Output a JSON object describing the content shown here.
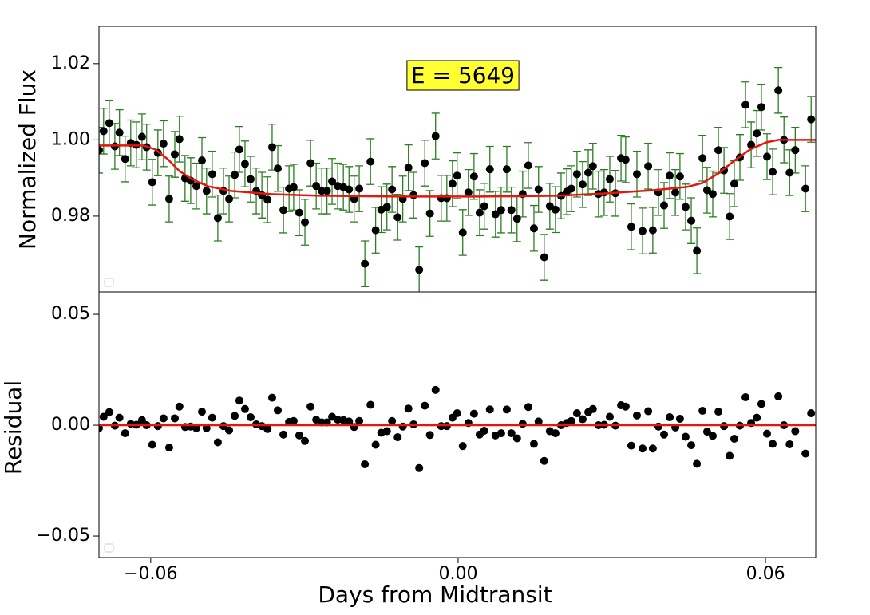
{
  "chart_data": [
    {
      "type": "scatter",
      "ylabel": "Normalized Flux",
      "annotation": "E = 5649",
      "color": "#000000",
      "errorbar_color": "#2b7d22",
      "annotation_color": "#ffff33",
      "xlim": [
        -0.0701,
        0.0698
      ],
      "ylim": [
        0.9601,
        1.0298
      ],
      "yticks": [
        {
          "value": 0.98,
          "label": "0.98"
        },
        {
          "value": 1.0,
          "label": "1.00"
        },
        {
          "value": 1.02,
          "label": "1.02"
        }
      ],
      "yerr": 0.006,
      "x": [
        -0.0701,
        -0.0692,
        -0.0681,
        -0.067,
        -0.0661,
        -0.065,
        -0.0639,
        -0.0628,
        -0.0617,
        -0.0608,
        -0.0597,
        -0.0586,
        -0.0575,
        -0.0564,
        -0.0553,
        -0.0544,
        -0.0533,
        -0.0522,
        -0.0511,
        -0.05,
        -0.0491,
        -0.048,
        -0.0469,
        -0.0458,
        -0.0447,
        -0.0436,
        -0.0427,
        -0.0416,
        -0.0405,
        -0.0394,
        -0.0383,
        -0.0372,
        -0.0363,
        -0.0352,
        -0.0341,
        -0.033,
        -0.0321,
        -0.031,
        -0.0299,
        -0.0288,
        -0.0277,
        -0.0266,
        -0.0256,
        -0.0246,
        -0.0235,
        -0.0224,
        -0.0213,
        -0.0203,
        -0.0193,
        -0.0182,
        -0.0171,
        -0.0161,
        -0.015,
        -0.0139,
        -0.0129,
        -0.0118,
        -0.0108,
        -0.0097,
        -0.0087,
        -0.0076,
        -0.0065,
        -0.0055,
        -0.0044,
        -0.0033,
        -0.0022,
        -0.0011,
        -0.0002,
        0.0009,
        0.002,
        0.0031,
        0.0042,
        0.0051,
        0.0062,
        0.0073,
        0.0084,
        0.0095,
        0.0104,
        0.0115,
        0.0126,
        0.0137,
        0.0148,
        0.0157,
        0.0168,
        0.0179,
        0.019,
        0.0201,
        0.0212,
        0.0221,
        0.0232,
        0.0243,
        0.0254,
        0.0263,
        0.0274,
        0.0285,
        0.0296,
        0.0307,
        0.0318,
        0.0327,
        0.0338,
        0.0349,
        0.036,
        0.0371,
        0.038,
        0.0391,
        0.0402,
        0.0413,
        0.0424,
        0.0433,
        0.0444,
        0.0455,
        0.0466,
        0.0477,
        0.0486,
        0.0497,
        0.0508,
        0.0519,
        0.053,
        0.0539,
        0.055,
        0.0561,
        0.0572,
        0.0583,
        0.0592,
        0.0603,
        0.0614,
        0.0625,
        0.0636,
        0.0647,
        0.0658,
        0.0678,
        0.0689
      ],
      "values": [
        0.9973,
        1.0023,
        1.0044,
        0.9983,
        1.0019,
        0.995,
        0.9992,
        0.9987,
        1.0008,
        0.9981,
        0.9889,
        0.9966,
        0.999,
        0.9845,
        0.9962,
        1.0002,
        0.9899,
        0.9893,
        0.9879,
        0.9946,
        0.9866,
        0.991,
        0.9795,
        0.9866,
        0.9845,
        0.9908,
        0.9975,
        0.9937,
        0.9897,
        0.9866,
        0.9855,
        0.9843,
        0.9981,
        0.9925,
        0.9816,
        0.9872,
        0.9876,
        0.9809,
        0.9784,
        0.9939,
        0.9879,
        0.9866,
        0.9866,
        0.9891,
        0.9879,
        0.9876,
        0.987,
        0.9845,
        0.9872,
        0.9675,
        0.9943,
        0.9763,
        0.9817,
        0.9824,
        0.987,
        0.9797,
        0.9845,
        0.9927,
        0.9855,
        0.9659,
        0.9939,
        0.9807,
        1.001,
        0.9847,
        0.9847,
        0.9885,
        0.9906,
        0.9757,
        0.9862,
        0.9904,
        0.9809,
        0.9826,
        0.9923,
        0.9805,
        0.9816,
        0.9923,
        0.9816,
        0.9793,
        0.9858,
        0.9933,
        0.9768,
        0.987,
        0.9692,
        0.9826,
        0.9817,
        0.9853,
        0.9864,
        0.9872,
        0.991,
        0.9883,
        0.9914,
        0.9931,
        0.9858,
        0.9862,
        0.9897,
        0.986,
        0.9952,
        0.9948,
        0.9772,
        0.991,
        0.9761,
        0.9931,
        0.9763,
        0.9862,
        0.9828,
        0.9906,
        0.9862,
        0.9904,
        0.9824,
        0.9788,
        0.9709,
        0.9952,
        0.9868,
        0.9858,
        0.9973,
        0.992,
        0.9799,
        0.9885,
        0.9954,
        1.0092,
        0.9987,
        1.0017,
        1.0086,
        0.9956,
        0.9916,
        1.013,
        1.0,
        0.9914,
        0.9973,
        0.9872,
        1.0054
      ],
      "model": {
        "color": "#e8150d",
        "x": [
          -0.0701,
          -0.0614,
          -0.0591,
          -0.0567,
          -0.0544,
          -0.052,
          -0.0489,
          -0.0443,
          -0.0365,
          -0.0271,
          -0.0115,
          0.0041,
          0.0196,
          0.029,
          0.0383,
          0.0446,
          0.0477,
          0.0508,
          0.0539,
          0.057,
          0.0602,
          0.0625,
          0.0698
        ],
        "values": [
          0.99853,
          0.99853,
          0.99749,
          0.99497,
          0.99183,
          0.98974,
          0.98785,
          0.9866,
          0.98576,
          0.98534,
          0.98513,
          0.98513,
          0.98534,
          0.98597,
          0.98681,
          0.98764,
          0.98869,
          0.9912,
          0.99455,
          0.99749,
          0.99937,
          1.0,
          1.0
        ]
      }
    },
    {
      "type": "scatter",
      "ylabel": "Residual",
      "xlabel": "Days from Midtransit",
      "color": "#000000",
      "xlim": [
        -0.0701,
        0.0698
      ],
      "ylim": [
        -0.0597,
        0.0601
      ],
      "xticks": [
        {
          "value": -0.06,
          "label": "−0.06"
        },
        {
          "value": 0,
          "label": "0.00"
        },
        {
          "value": 0.06,
          "label": "0.06"
        }
      ],
      "yticks": [
        {
          "value": 0.05,
          "label": "0.05"
        },
        {
          "value": 0,
          "label": "0.00"
        },
        {
          "value": -0.05,
          "label": "−0.05"
        }
      ],
      "hline": 0,
      "hline_color": "#e8150d",
      "x": [
        -0.0701,
        -0.0692,
        -0.0681,
        -0.067,
        -0.0661,
        -0.065,
        -0.0639,
        -0.0628,
        -0.0617,
        -0.0608,
        -0.0597,
        -0.0586,
        -0.0575,
        -0.0564,
        -0.0553,
        -0.0544,
        -0.0533,
        -0.0522,
        -0.0511,
        -0.05,
        -0.0491,
        -0.048,
        -0.0469,
        -0.0458,
        -0.0447,
        -0.0436,
        -0.0427,
        -0.0416,
        -0.0405,
        -0.0394,
        -0.0383,
        -0.0372,
        -0.0363,
        -0.0352,
        -0.0341,
        -0.033,
        -0.0321,
        -0.031,
        -0.0299,
        -0.0288,
        -0.0277,
        -0.0266,
        -0.0256,
        -0.0246,
        -0.0235,
        -0.0224,
        -0.0213,
        -0.0203,
        -0.0193,
        -0.0182,
        -0.0171,
        -0.0161,
        -0.015,
        -0.0139,
        -0.0129,
        -0.0118,
        -0.0108,
        -0.0097,
        -0.0087,
        -0.0076,
        -0.0065,
        -0.0055,
        -0.0044,
        -0.0033,
        -0.0022,
        -0.0011,
        -0.0002,
        0.0009,
        0.002,
        0.0031,
        0.0042,
        0.0051,
        0.0062,
        0.0073,
        0.0084,
        0.0095,
        0.0104,
        0.0115,
        0.0126,
        0.0137,
        0.0148,
        0.0157,
        0.0168,
        0.0179,
        0.019,
        0.0201,
        0.0212,
        0.0221,
        0.0232,
        0.0243,
        0.0254,
        0.0263,
        0.0274,
        0.0285,
        0.0296,
        0.0307,
        0.0318,
        0.0327,
        0.0338,
        0.0349,
        0.036,
        0.0371,
        0.038,
        0.0391,
        0.0402,
        0.0413,
        0.0424,
        0.0433,
        0.0444,
        0.0455,
        0.0466,
        0.0477,
        0.0486,
        0.0497,
        0.0508,
        0.0519,
        0.053,
        0.0539,
        0.055,
        0.0561,
        0.0572,
        0.0583,
        0.0592,
        0.0603,
        0.0614,
        0.0625,
        0.0636,
        0.0647,
        0.0658,
        0.0678,
        0.0689
      ],
      "values": [
        -0.0013,
        0.0038,
        0.0059,
        -0.0002,
        0.0034,
        -0.0036,
        0.0006,
        0.0002,
        0.0023,
        0.0,
        -0.0088,
        -0.0004,
        0.0031,
        -0.0101,
        0.0031,
        0.0084,
        -0.0008,
        -0.0006,
        -0.0013,
        0.0061,
        -0.0013,
        0.0034,
        -0.0077,
        -0.0004,
        -0.0023,
        0.0042,
        0.0111,
        0.0073,
        0.0036,
        0.0004,
        -0.0004,
        -0.0017,
        0.0124,
        0.0067,
        -0.0042,
        0.0015,
        0.0019,
        -0.0046,
        -0.0071,
        0.0084,
        0.0025,
        0.0013,
        0.0013,
        0.0038,
        0.0025,
        0.0023,
        0.0017,
        -0.0008,
        0.0019,
        -0.0176,
        0.0092,
        -0.0088,
        -0.0034,
        -0.0027,
        0.0019,
        -0.0054,
        -0.0006,
        0.0075,
        0.0004,
        -0.0193,
        0.0088,
        -0.0044,
        0.0159,
        -0.0004,
        -0.0004,
        0.0034,
        0.0054,
        -0.0094,
        0.001,
        0.0052,
        -0.0042,
        -0.0025,
        0.0071,
        -0.0046,
        -0.0036,
        0.0071,
        -0.0036,
        -0.0059,
        0.0006,
        0.0082,
        -0.0084,
        0.0017,
        -0.0161,
        -0.0027,
        -0.0036,
        0.0,
        0.001,
        0.0019,
        0.0054,
        0.0027,
        0.0059,
        0.0073,
        0.0,
        0.0002,
        0.0038,
        -0.0002,
        0.009,
        0.0084,
        -0.0092,
        0.0044,
        -0.0105,
        0.0063,
        -0.0105,
        -0.0006,
        -0.0042,
        0.0036,
        -0.001,
        0.0029,
        -0.0052,
        -0.009,
        -0.0174,
        0.0065,
        -0.0029,
        -0.0048,
        0.0061,
        -0.0004,
        -0.0138,
        -0.0061,
        -0.0002,
        0.0126,
        0.001,
        0.0034,
        0.0096,
        -0.0038,
        -0.0084,
        0.013,
        0.0,
        -0.0086,
        -0.0027,
        -0.0128,
        0.0054
      ]
    }
  ]
}
